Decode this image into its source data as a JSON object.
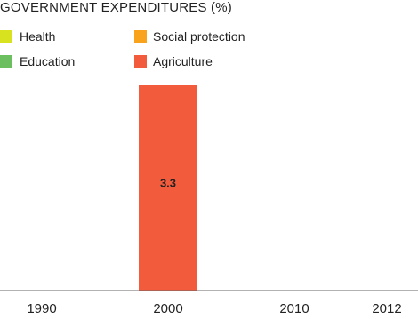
{
  "chart_data": {
    "type": "bar",
    "title": "GOVERNMENT EXPENDITURES (%)",
    "categories": [
      "1990",
      "2000",
      "2010",
      "2012"
    ],
    "series": [
      {
        "name": "Health",
        "color": "#d9e21f",
        "values": [
          null,
          null,
          null,
          null
        ]
      },
      {
        "name": "Education",
        "color": "#6cbf5f",
        "values": [
          null,
          null,
          null,
          null
        ]
      },
      {
        "name": "Social protection",
        "color": "#f9a21b",
        "values": [
          null,
          null,
          null,
          null
        ]
      },
      {
        "name": "Agriculture",
        "color": "#f25c3d",
        "values": [
          null,
          3.3,
          null,
          null
        ]
      }
    ],
    "data_labels": [
      {
        "series": "Agriculture",
        "category": "2000",
        "text": "3.3"
      }
    ],
    "ylim": [
      0,
      3.3
    ],
    "grid": false,
    "legend_position": "top-left",
    "xlabel": "",
    "ylabel": ""
  }
}
